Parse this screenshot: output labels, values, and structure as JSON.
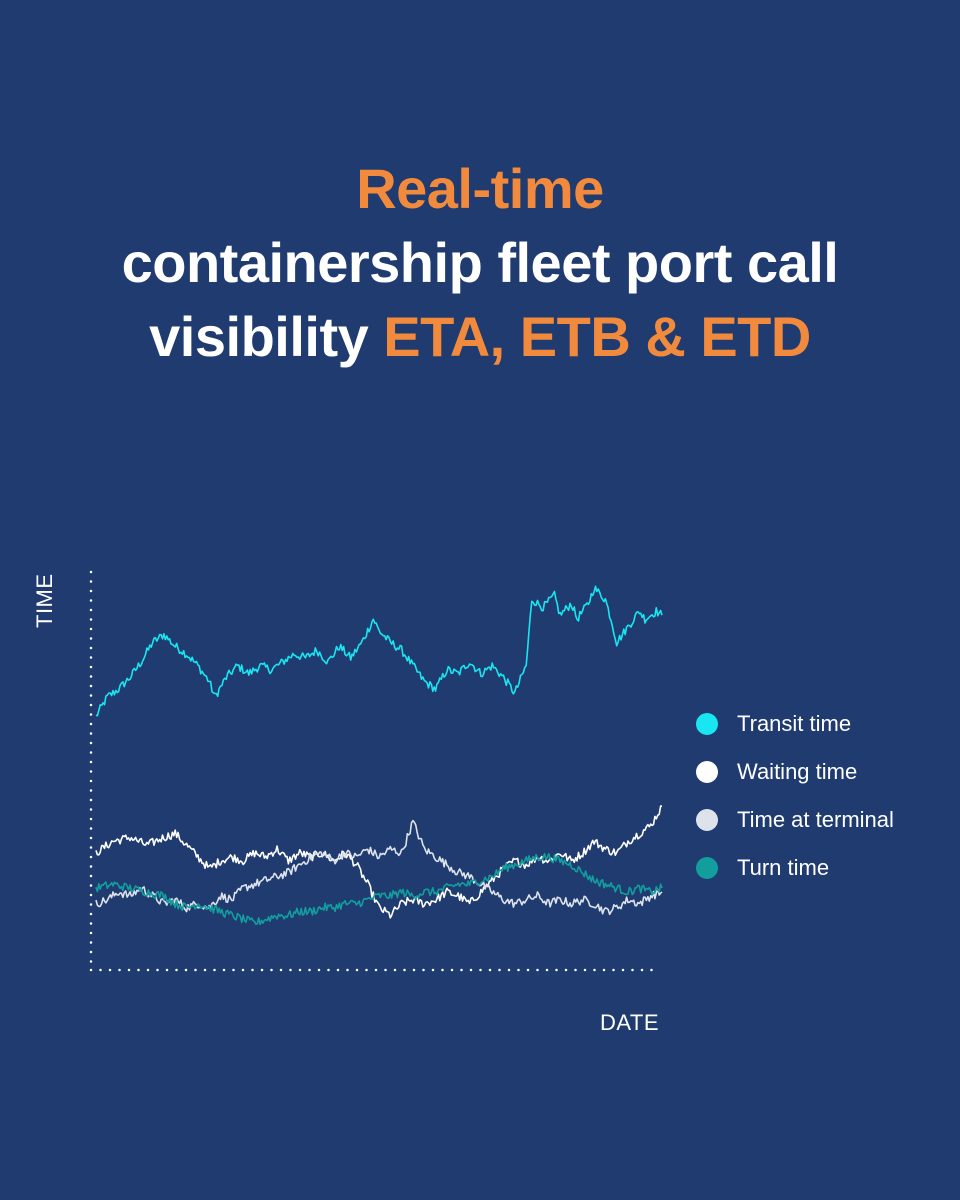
{
  "headline": {
    "line1": "Real-time",
    "line2": "containership fleet port call",
    "line3_plain": "visibility ",
    "line3_accent": "ETA, ETB & ETD"
  },
  "colors": {
    "background": "#1f3b70",
    "accent": "#f28a3e",
    "text": "#ffffff"
  },
  "chart_data": {
    "type": "line",
    "xlabel": "DATE",
    "ylabel": "TIME",
    "xlim": [
      0,
      100
    ],
    "ylim": [
      0,
      100
    ],
    "grid": false,
    "legend_position": "right",
    "series": [
      {
        "name": "Transit time",
        "color": "#19e6f0",
        "points": [
          [
            0,
            65
          ],
          [
            2,
            70
          ],
          [
            4,
            72
          ],
          [
            6,
            75
          ],
          [
            8,
            79
          ],
          [
            10,
            84
          ],
          [
            12,
            86
          ],
          [
            14,
            83
          ],
          [
            16,
            81
          ],
          [
            18,
            78
          ],
          [
            20,
            74
          ],
          [
            21,
            70
          ],
          [
            23,
            75
          ],
          [
            25,
            78
          ],
          [
            27,
            76
          ],
          [
            29,
            78
          ],
          [
            31,
            77
          ],
          [
            33,
            79
          ],
          [
            35,
            81
          ],
          [
            37,
            80
          ],
          [
            39,
            82
          ],
          [
            41,
            79
          ],
          [
            43,
            83
          ],
          [
            45,
            80
          ],
          [
            47,
            84
          ],
          [
            49,
            90
          ],
          [
            50,
            87
          ],
          [
            52,
            84
          ],
          [
            54,
            82
          ],
          [
            56,
            78
          ],
          [
            58,
            74
          ],
          [
            60,
            72
          ],
          [
            62,
            77
          ],
          [
            64,
            76
          ],
          [
            66,
            79
          ],
          [
            68,
            76
          ],
          [
            70,
            78
          ],
          [
            72,
            75
          ],
          [
            74,
            71
          ],
          [
            76,
            78
          ],
          [
            77,
            95
          ],
          [
            79,
            93
          ],
          [
            81,
            96
          ],
          [
            82,
            91
          ],
          [
            84,
            94
          ],
          [
            85,
            90
          ],
          [
            87,
            94
          ],
          [
            88,
            98
          ],
          [
            90,
            95
          ],
          [
            91,
            90
          ],
          [
            92,
            84
          ],
          [
            94,
            88
          ],
          [
            96,
            92
          ],
          [
            97,
            90
          ],
          [
            99,
            92
          ],
          [
            100,
            91
          ]
        ]
      },
      {
        "name": "Waiting time",
        "color": "#ffffff",
        "points": [
          [
            0,
            30
          ],
          [
            3,
            33
          ],
          [
            6,
            34
          ],
          [
            9,
            32
          ],
          [
            12,
            34
          ],
          [
            14,
            35
          ],
          [
            16,
            32
          ],
          [
            18,
            29
          ],
          [
            20,
            26
          ],
          [
            22,
            28
          ],
          [
            24,
            29
          ],
          [
            26,
            28
          ],
          [
            28,
            30
          ],
          [
            30,
            29
          ],
          [
            32,
            31
          ],
          [
            34,
            28
          ],
          [
            36,
            30
          ],
          [
            38,
            29
          ],
          [
            40,
            30
          ],
          [
            42,
            28
          ],
          [
            44,
            30
          ],
          [
            46,
            27
          ],
          [
            48,
            22
          ],
          [
            50,
            16
          ],
          [
            52,
            14
          ],
          [
            54,
            17
          ],
          [
            56,
            18
          ],
          [
            58,
            17
          ],
          [
            60,
            18
          ],
          [
            62,
            20
          ],
          [
            64,
            19
          ],
          [
            66,
            17
          ],
          [
            68,
            20
          ],
          [
            70,
            23
          ],
          [
            72,
            26
          ],
          [
            74,
            28
          ],
          [
            76,
            27
          ],
          [
            78,
            29
          ],
          [
            80,
            28
          ],
          [
            82,
            30
          ],
          [
            84,
            28
          ],
          [
            86,
            30
          ],
          [
            88,
            33
          ],
          [
            90,
            31
          ],
          [
            92,
            30
          ],
          [
            94,
            33
          ],
          [
            96,
            35
          ],
          [
            98,
            37
          ],
          [
            100,
            42
          ]
        ]
      },
      {
        "name": "Time at terminal",
        "color": "#dde2eb",
        "points": [
          [
            0,
            17
          ],
          [
            2,
            18
          ],
          [
            4,
            20
          ],
          [
            6,
            19
          ],
          [
            8,
            21
          ],
          [
            10,
            19
          ],
          [
            12,
            17
          ],
          [
            14,
            18
          ],
          [
            16,
            16
          ],
          [
            18,
            17
          ],
          [
            20,
            16
          ],
          [
            22,
            19
          ],
          [
            24,
            18
          ],
          [
            26,
            21
          ],
          [
            28,
            22
          ],
          [
            30,
            23
          ],
          [
            32,
            24
          ],
          [
            34,
            25
          ],
          [
            36,
            27
          ],
          [
            38,
            29
          ],
          [
            40,
            30
          ],
          [
            42,
            28
          ],
          [
            44,
            30
          ],
          [
            46,
            29
          ],
          [
            48,
            31
          ],
          [
            50,
            29
          ],
          [
            52,
            31
          ],
          [
            54,
            30
          ],
          [
            56,
            38
          ],
          [
            58,
            31
          ],
          [
            60,
            29
          ],
          [
            62,
            27
          ],
          [
            64,
            25
          ],
          [
            66,
            24
          ],
          [
            68,
            22
          ],
          [
            70,
            20
          ],
          [
            72,
            18
          ],
          [
            74,
            17
          ],
          [
            76,
            18
          ],
          [
            78,
            19
          ],
          [
            80,
            17
          ],
          [
            82,
            18
          ],
          [
            84,
            17
          ],
          [
            86,
            18
          ],
          [
            88,
            17
          ],
          [
            90,
            15
          ],
          [
            92,
            16
          ],
          [
            94,
            18
          ],
          [
            96,
            17
          ],
          [
            98,
            19
          ],
          [
            100,
            20
          ]
        ]
      },
      {
        "name": "Turn time",
        "color": "#139e9e",
        "points": [
          [
            0,
            21
          ],
          [
            3,
            22
          ],
          [
            6,
            21
          ],
          [
            9,
            20
          ],
          [
            12,
            19
          ],
          [
            14,
            17
          ],
          [
            16,
            16
          ],
          [
            18,
            17
          ],
          [
            20,
            16
          ],
          [
            22,
            15
          ],
          [
            24,
            14
          ],
          [
            26,
            13
          ],
          [
            28,
            12
          ],
          [
            30,
            13
          ],
          [
            32,
            14
          ],
          [
            34,
            14
          ],
          [
            36,
            15
          ],
          [
            38,
            15
          ],
          [
            40,
            16
          ],
          [
            42,
            16
          ],
          [
            44,
            17
          ],
          [
            46,
            17
          ],
          [
            48,
            18
          ],
          [
            50,
            19
          ],
          [
            52,
            19
          ],
          [
            54,
            20
          ],
          [
            56,
            19
          ],
          [
            58,
            20
          ],
          [
            60,
            20
          ],
          [
            62,
            21
          ],
          [
            64,
            22
          ],
          [
            66,
            22
          ],
          [
            68,
            23
          ],
          [
            70,
            24
          ],
          [
            72,
            26
          ],
          [
            74,
            27
          ],
          [
            76,
            28
          ],
          [
            78,
            29
          ],
          [
            80,
            29
          ],
          [
            82,
            28
          ],
          [
            84,
            27
          ],
          [
            86,
            25
          ],
          [
            88,
            23
          ],
          [
            90,
            22
          ],
          [
            92,
            21
          ],
          [
            94,
            20
          ],
          [
            96,
            21
          ],
          [
            98,
            20
          ],
          [
            100,
            21
          ]
        ]
      }
    ]
  }
}
